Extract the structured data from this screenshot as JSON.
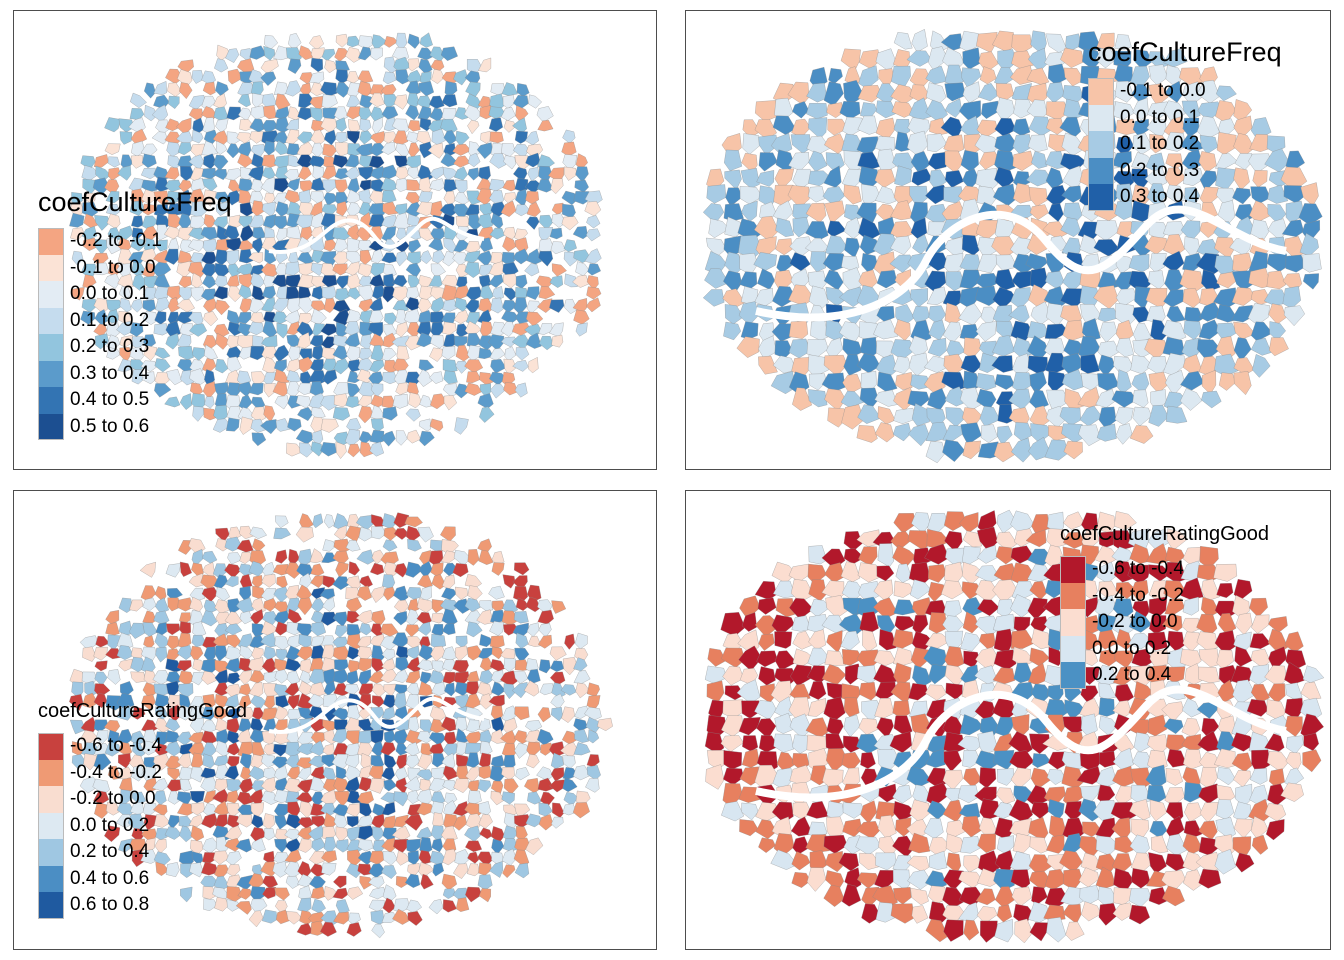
{
  "panels": [
    {
      "legend": {
        "title": "coefCultureFreq",
        "items": [
          {
            "label": "-0.2 to -0.1",
            "color": "#f4a582"
          },
          {
            "label": "-0.1 to 0.0",
            "color": "#fbe3d6"
          },
          {
            "label": "0.0 to 0.1",
            "color": "#e3ecf4"
          },
          {
            "label": "0.1 to 0.2",
            "color": "#c5dcee"
          },
          {
            "label": "0.2 to 0.3",
            "color": "#92c5de"
          },
          {
            "label": "0.3 to 0.4",
            "color": "#5b9bcb"
          },
          {
            "label": "0.4 to 0.5",
            "color": "#3374b3"
          },
          {
            "label": "0.5 to 0.6",
            "color": "#1c4f91"
          }
        ]
      }
    },
    {
      "legend": {
        "title": "coefCultureFreq",
        "items": [
          {
            "label": "-0.1 to 0.0",
            "color": "#f7c4a8"
          },
          {
            "label": "0.0 to 0.1",
            "color": "#dce8f1"
          },
          {
            "label": "0.1 to 0.2",
            "color": "#a7cbe4"
          },
          {
            "label": "0.2 to 0.3",
            "color": "#4b8ec4"
          },
          {
            "label": "0.3 to 0.4",
            "color": "#2060a8"
          }
        ]
      }
    },
    {
      "legend": {
        "title": "coefCultureRatingGood",
        "items": [
          {
            "label": "-0.6 to -0.4",
            "color": "#c8413e"
          },
          {
            "label": "-0.4 to -0.2",
            "color": "#ef9a74"
          },
          {
            "label": "-0.2 to 0.0",
            "color": "#f9ddd0"
          },
          {
            "label": "0.0 to 0.2",
            "color": "#dde9f2"
          },
          {
            "label": "0.2 to 0.4",
            "color": "#9fc7e2"
          },
          {
            "label": "0.4 to 0.6",
            "color": "#4b8ec4"
          },
          {
            "label": "0.6 to 0.8",
            "color": "#1f5aa0"
          }
        ]
      }
    },
    {
      "legend": {
        "title": "coefCultureRatingGood",
        "items": [
          {
            "label": "-0.6 to -0.4",
            "color": "#b2182b"
          },
          {
            "label": "-0.4 to -0.2",
            "color": "#e7805f"
          },
          {
            "label": "-0.2 to 0.0",
            "color": "#fbddd0"
          },
          {
            "label": "0.0 to 0.2",
            "color": "#d8e6f1"
          },
          {
            "label": "0.2 to 0.4",
            "color": "#4b91c4"
          }
        ]
      }
    }
  ]
}
